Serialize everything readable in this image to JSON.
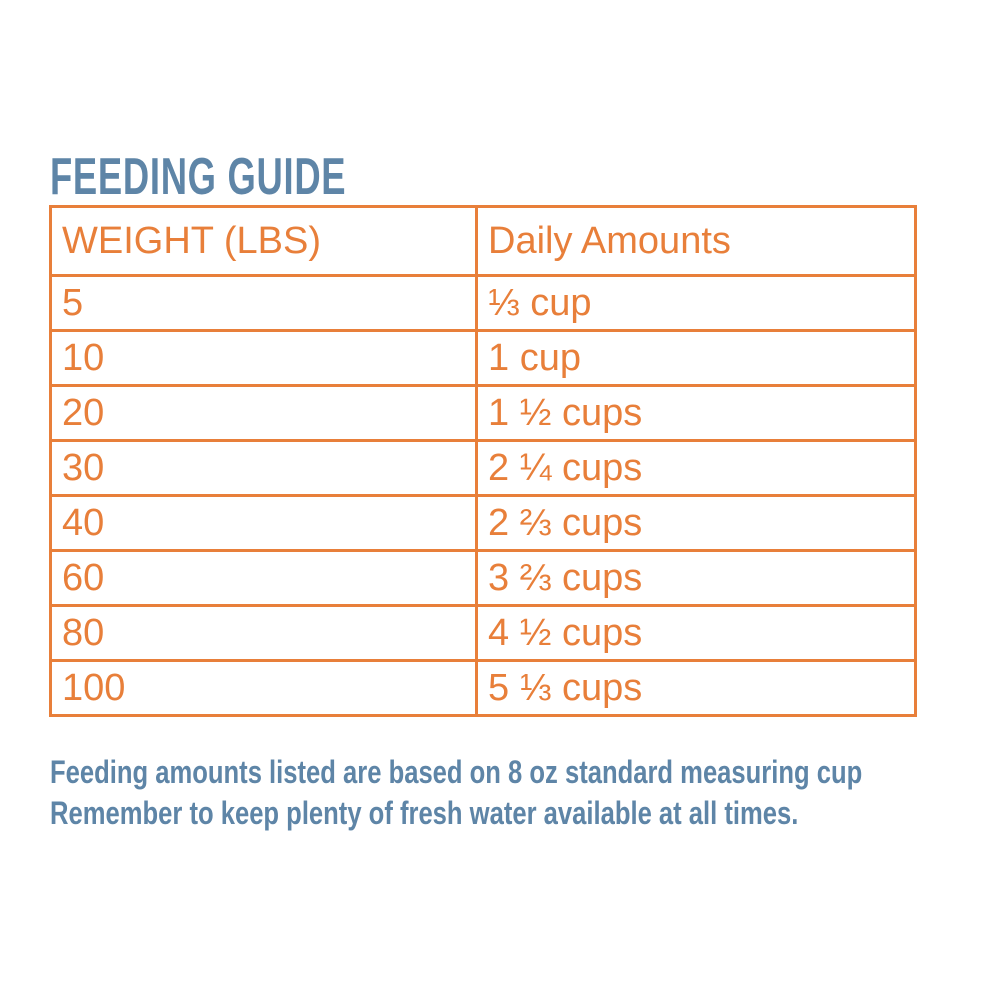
{
  "title": "FEEDING GUIDE",
  "colors": {
    "accent_orange": "#e87f3a",
    "heading_blue": "#5e85a7"
  },
  "table": {
    "columns": [
      "WEIGHT (LBS)",
      "Daily Amounts"
    ],
    "rows": [
      [
        "5",
        "⅓ cup"
      ],
      [
        "10",
        "1 cup"
      ],
      [
        "20",
        "1 ½ cups"
      ],
      [
        "30",
        "2 ¼ cups"
      ],
      [
        "40",
        "2 ⅔ cups"
      ],
      [
        "60",
        "3 ⅔ cups"
      ],
      [
        "80",
        "4 ½ cups"
      ],
      [
        "100",
        "5 ⅓ cups"
      ]
    ]
  },
  "notes": {
    "line1": "Feeding amounts listed are based on 8 oz standard measuring cup",
    "line2": "Remember to keep plenty of fresh water available at all times."
  }
}
